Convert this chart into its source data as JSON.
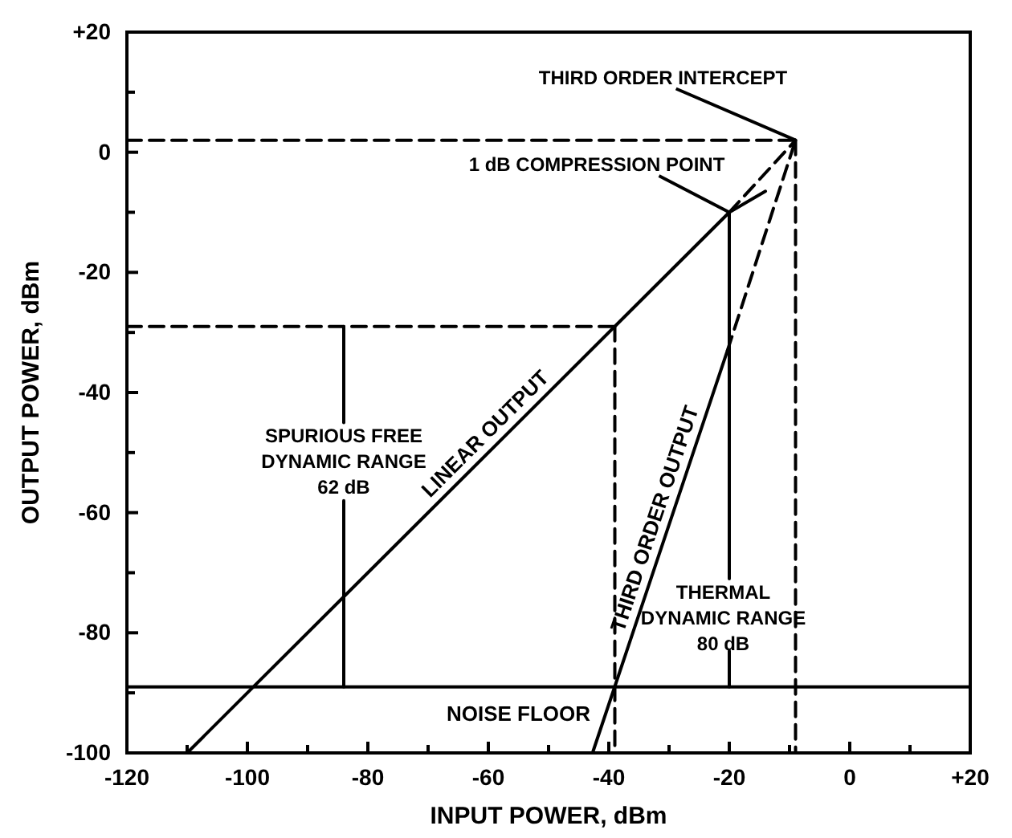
{
  "chart_data": {
    "type": "line",
    "xlabel": "INPUT POWER, dBm",
    "ylabel": "OUTPUT POWER, dBm",
    "xlim": [
      -120,
      20
    ],
    "ylim": [
      -100,
      20
    ],
    "xticks": [
      -120,
      {
        "value": -110,
        "label": null
      },
      -100,
      {
        "value": -90,
        "label": null
      },
      -80,
      {
        "value": -70,
        "label": null
      },
      -60,
      {
        "value": -50,
        "label": null
      },
      -40,
      {
        "value": -30,
        "label": null
      },
      -20,
      {
        "value": -10,
        "label": null
      },
      0,
      {
        "value": 10,
        "label": null
      },
      {
        "value": 20,
        "label": "+20"
      }
    ],
    "yticks": [
      -100,
      {
        "value": -90,
        "label": null
      },
      -80,
      {
        "value": -70,
        "label": null
      },
      -60,
      {
        "value": -50,
        "label": null
      },
      -40,
      {
        "value": -30,
        "label": null
      },
      -20,
      {
        "value": -10,
        "label": null
      },
      0,
      {
        "value": 10,
        "label": null
      },
      {
        "value": 20,
        "label": "+20"
      }
    ],
    "grid": false,
    "legend": false,
    "marker": "none",
    "series": [
      {
        "name": "LINEAR OUTPUT",
        "color": "#000000",
        "line_style": "solid",
        "x": [
          -110,
          -20,
          -14
        ],
        "values": [
          -100,
          -10,
          -6.5
        ]
      },
      {
        "name": "THIRD ORDER OUTPUT",
        "color": "#000000",
        "line_style": "solid",
        "x": [
          -42.7,
          -20.3
        ],
        "values": [
          -100,
          -33
        ]
      },
      {
        "color": "#000000",
        "line_style": "dashed",
        "x": [
          -20,
          -9
        ],
        "values": [
          -10,
          2
        ]
      },
      {
        "color": "#000000",
        "line_style": "dashed",
        "x": [
          -20.3,
          -9
        ],
        "values": [
          -33,
          2
        ]
      },
      {
        "color": "#000000",
        "line_style": "dashed",
        "x": [
          -120,
          -9
        ],
        "values": [
          2,
          2
        ]
      },
      {
        "color": "#000000",
        "line_style": "dashed",
        "x": [
          -9,
          -9
        ],
        "values": [
          2,
          -100
        ]
      },
      {
        "color": "#000000",
        "line_style": "dashed",
        "x": [
          -120,
          -39
        ],
        "values": [
          -29,
          -29
        ]
      },
      {
        "color": "#000000",
        "line_style": "dashed",
        "x": [
          -39,
          -39
        ],
        "values": [
          -29,
          -100
        ]
      },
      {
        "color": "#000000",
        "line_style": "solid",
        "x": [
          -84,
          -84
        ],
        "values": [
          -29,
          -45
        ]
      },
      {
        "color": "#000000",
        "line_style": "solid",
        "x": [
          -84,
          -84
        ],
        "values": [
          -58,
          -89
        ]
      },
      {
        "color": "#000000",
        "line_style": "solid",
        "x": [
          -20,
          -20
        ],
        "values": [
          -10,
          -71
        ]
      },
      {
        "color": "#000000",
        "line_style": "solid",
        "x": [
          -20,
          -20
        ],
        "values": [
          -83,
          -89
        ]
      }
    ],
    "ref_lines": [
      {
        "axis": "y",
        "value": -89,
        "label": "NOISE FLOOR",
        "color": "#000000",
        "line_style": "solid"
      }
    ],
    "annotations": [
      {
        "text": "THIRD ORDER INTERCEPT",
        "x": -9,
        "y": 2
      },
      {
        "text": "1 dB COMPRESSION POINT",
        "x": -20,
        "y": -10
      },
      "SPURIOUS FREE\nDYNAMIC RANGE\n62 dB",
      "THERMAL\nDYNAMIC RANGE\n80 dB"
    ]
  }
}
